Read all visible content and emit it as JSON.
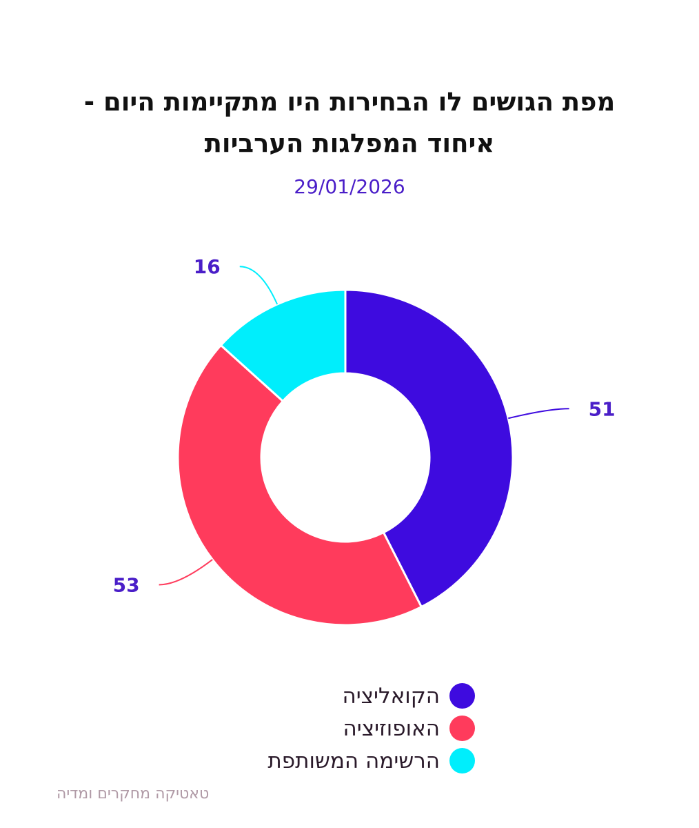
{
  "title": "מפת הגושים לו הבחירות היו מתקיימות היום - איחוד המפלגות הערביות",
  "date": "29/01/2026",
  "footer": "טאטיקה מחקרים ומדיה",
  "chart_data": {
    "type": "pie",
    "donut": true,
    "title": "מפת הגושים לו הבחירות היו מתקיימות היום - איחוד המפלגות הערביות",
    "subtitle": "29/01/2026",
    "categories": [
      "הקואליציה",
      "האופוזיציה",
      "הרשימה המשותפת"
    ],
    "values": [
      51,
      53,
      16
    ],
    "colors": [
      "#3e0bdf",
      "#ff3b5c",
      "#00eefc"
    ],
    "label_color": "#4a1ec8",
    "legend": "bottom"
  }
}
